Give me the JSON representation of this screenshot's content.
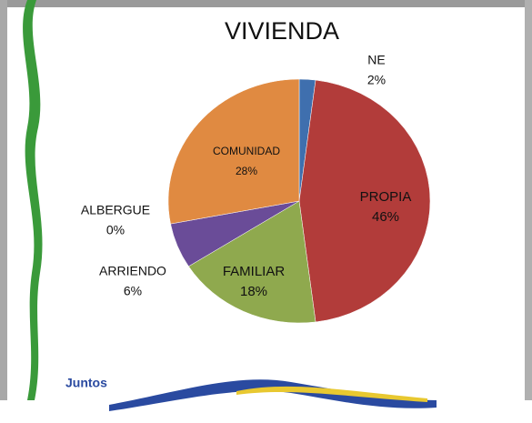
{
  "chart_data": {
    "type": "pie",
    "title": "VIVIENDA",
    "categories": [
      "NE",
      "PROPIA",
      "FAMILIAR",
      "ARRIENDO",
      "ALBERGUE",
      "COMUNIDAD"
    ],
    "values": [
      2,
      46,
      18,
      6,
      0,
      28
    ],
    "value_labels": [
      "2%",
      "46%",
      "18%",
      "6%",
      "0%",
      "28%"
    ],
    "colors": [
      "#3f6fae",
      "#b23c3a",
      "#8fa94e",
      "#6a4c98",
      "#4aa0c0",
      "#e08a41"
    ]
  },
  "logo_text": "Juntos"
}
